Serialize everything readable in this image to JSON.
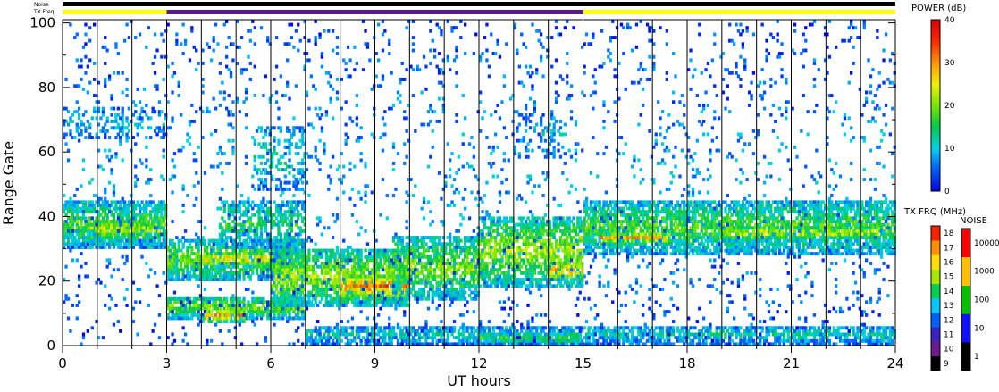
{
  "chart_data": {
    "type": "heatmap",
    "xlabel": "UT hours",
    "ylabel": "Range Gate",
    "xlim": [
      0,
      24
    ],
    "ylim": [
      0,
      101
    ],
    "x_ticks": [
      "0",
      "3",
      "6",
      "9",
      "12",
      "15",
      "18",
      "21",
      "24"
    ],
    "y_ticks": [
      "0",
      "20",
      "40",
      "60",
      "80",
      "100"
    ],
    "minor_x_step_hours": 1,
    "grid": "vertical lines each hour",
    "status_bars": {
      "noise_label": "Noise",
      "txfreq_label": "TX Freq",
      "txfreq_segments": [
        {
          "start": 0,
          "end": 3,
          "color": "#ffff00"
        },
        {
          "start": 3,
          "end": 15,
          "color": "#5a1a8a"
        },
        {
          "start": 15,
          "end": 24,
          "color": "#ffff00"
        }
      ]
    },
    "power_colorbar": {
      "title": "POWER (dB)",
      "ticks": [
        "0",
        "10",
        "20",
        "30",
        "40"
      ],
      "range": [
        0,
        40
      ]
    },
    "txfreq_colorbar": {
      "title": "TX FRQ (MHz)",
      "ticks": [
        "9",
        "10",
        "11",
        "12",
        "13",
        "14",
        "15",
        "16",
        "17",
        "18"
      ],
      "colors": [
        "#000000",
        "#6a1a8a",
        "#3a22c0",
        "#0060ff",
        "#00c8ff",
        "#00d050",
        "#a8e800",
        "#ffe000",
        "#ff9000",
        "#ff2000"
      ]
    },
    "noise_colorbar": {
      "title": "NOISE",
      "ticks": [
        "1",
        "10",
        "100",
        "1000",
        "10000"
      ],
      "colors": [
        "#000000",
        "#1010ff",
        "#00c000",
        "#ffc000",
        "#ff0000"
      ]
    },
    "bands": [
      {
        "t0": 0.0,
        "t1": 3.0,
        "g0": 30,
        "g1": 45,
        "peak": 18,
        "dens": 0.8
      },
      {
        "t0": 0.8,
        "t1": 2.8,
        "g0": 32,
        "g1": 39,
        "peak": 24,
        "dens": 0.7
      },
      {
        "t0": 3.0,
        "t1": 7.0,
        "g0": 20,
        "g1": 33,
        "peak": 20,
        "dens": 0.75
      },
      {
        "t0": 4.0,
        "t1": 6.0,
        "g0": 24,
        "g1": 29,
        "peak": 27,
        "dens": 0.6
      },
      {
        "t0": 4.5,
        "t1": 7.0,
        "g0": 30,
        "g1": 45,
        "peak": 16,
        "dens": 0.55
      },
      {
        "t0": 3.0,
        "t1": 7.0,
        "g0": 8,
        "g1": 15,
        "peak": 20,
        "dens": 0.8
      },
      {
        "t0": 4.0,
        "t1": 5.2,
        "g0": 7,
        "g1": 11,
        "peak": 30,
        "dens": 0.7
      },
      {
        "t0": 6.0,
        "t1": 10.0,
        "g0": 12,
        "g1": 30,
        "peak": 22,
        "dens": 0.75
      },
      {
        "t0": 8.0,
        "t1": 10.0,
        "g0": 14,
        "g1": 22,
        "peak": 32,
        "dens": 0.75
      },
      {
        "t0": 9.5,
        "t1": 12.0,
        "g0": 14,
        "g1": 34,
        "peak": 20,
        "dens": 0.7
      },
      {
        "t0": 12.0,
        "t1": 15.0,
        "g0": 18,
        "g1": 40,
        "peak": 22,
        "dens": 0.7
      },
      {
        "t0": 14.0,
        "t1": 15.0,
        "g0": 20,
        "g1": 26,
        "peak": 30,
        "dens": 0.6
      },
      {
        "t0": 15.0,
        "t1": 24.0,
        "g0": 28,
        "g1": 45,
        "peak": 18,
        "dens": 0.75
      },
      {
        "t0": 15.5,
        "t1": 17.5,
        "g0": 31,
        "g1": 35,
        "peak": 29,
        "dens": 0.6
      },
      {
        "t0": 18.5,
        "t1": 23.5,
        "g0": 32,
        "g1": 37,
        "peak": 24,
        "dens": 0.55
      },
      {
        "t0": 7.0,
        "t1": 24.0,
        "g0": 0,
        "g1": 6,
        "peak": 12,
        "dens": 0.7
      },
      {
        "t0": 12.0,
        "t1": 15.0,
        "g0": 0,
        "g1": 4,
        "peak": 16,
        "dens": 0.8
      },
      {
        "t0": 0.0,
        "t1": 3.0,
        "g0": 64,
        "g1": 74,
        "peak": 10,
        "dens": 0.25
      },
      {
        "t0": 5.5,
        "t1": 7.0,
        "g0": 48,
        "g1": 68,
        "peak": 12,
        "dens": 0.3
      },
      {
        "t0": 13.0,
        "t1": 14.5,
        "g0": 58,
        "g1": 72,
        "peak": 10,
        "dens": 0.2
      },
      {
        "t0": 0.0,
        "t1": 24.0,
        "g0": 0,
        "g1": 101,
        "peak": 8,
        "dens": 0.06
      }
    ]
  }
}
